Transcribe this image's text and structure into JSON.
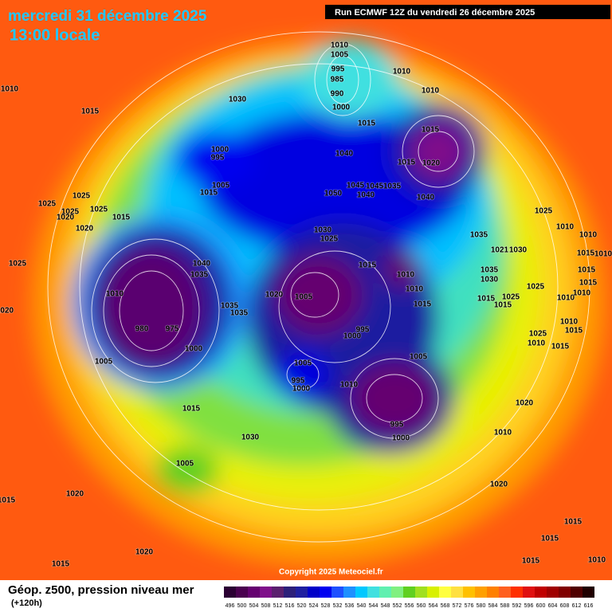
{
  "header": {
    "date": "mercredi 31 décembre 2025",
    "time": "13:00 locale",
    "run": "Run ECMWF 12Z du vendredi 26 décembre 2025"
  },
  "footer": {
    "title": "Géop. z500, pression niveau mer",
    "lead": "(+120h)",
    "copyright": "Copyright 2025 Meteociel.fr"
  },
  "isobar_labels": [
    1010,
    1015,
    1030,
    1010,
    1005,
    995,
    985,
    990,
    1000,
    1010,
    1010,
    1015,
    1015,
    1000,
    995,
    1040,
    1015,
    1020,
    1005,
    1015,
    1050,
    1045,
    1040,
    1045,
    1035,
    1040,
    1025,
    1025,
    1025,
    1025,
    1020,
    1015,
    1020,
    1025,
    1010,
    1010,
    1035,
    1030,
    1025,
    1021,
    1030,
    1015,
    1010,
    1025,
    1040,
    1035,
    1015,
    1010,
    1035,
    1030,
    1015,
    1015,
    1025,
    1020,
    1005,
    1010,
    1010,
    1025,
    1015,
    1015,
    1010,
    1010,
    1035,
    1035,
    1015,
    1020,
    980,
    975,
    995,
    1000,
    1025,
    1010,
    1015,
    1010,
    1015,
    1000,
    1005,
    1005,
    1005,
    1010,
    995,
    1000,
    1020,
    1015,
    995,
    1000,
    1010,
    1030,
    1005,
    1020,
    1020,
    1015,
    1015,
    1015,
    1020,
    1015,
    1015,
    1010
  ],
  "colorbar": {
    "values": [
      496,
      500,
      504,
      508,
      512,
      516,
      520,
      524,
      528,
      532,
      536,
      540,
      544,
      548,
      552,
      556,
      560,
      564,
      568,
      572,
      576,
      580,
      584,
      588,
      592,
      596,
      600,
      604,
      608,
      612,
      616
    ],
    "colors": [
      "#2b0033",
      "#4a004f",
      "#650070",
      "#7f0f8a",
      "#5a1f6e",
      "#2c1f7a",
      "#1f1fa0",
      "#0000c8",
      "#0000f0",
      "#1e50ff",
      "#1e90ff",
      "#00c8ff",
      "#40e0e0",
      "#60f0b0",
      "#80f080",
      "#60d020",
      "#a0e020",
      "#d8f000",
      "#ffff40",
      "#ffe040",
      "#ffc000",
      "#ffa000",
      "#ff8000",
      "#ff6020",
      "#ff3000",
      "#e01010",
      "#c00000",
      "#a00000",
      "#800000",
      "#500000",
      "#200000"
    ]
  }
}
